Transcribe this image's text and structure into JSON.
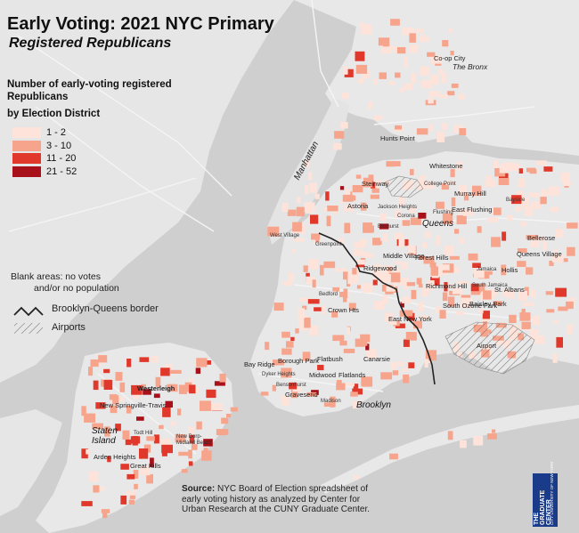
{
  "title": "Early Voting: 2021 NYC Primary",
  "subtitle": "Registered Republicans",
  "legend": {
    "title": "Number of early-voting registered Republicans",
    "subtitle": "by Election District",
    "items": [
      {
        "label": "1 - 2",
        "color": "#fde3da"
      },
      {
        "label": "3 - 10",
        "color": "#f7a48c"
      },
      {
        "label": "11 - 20",
        "color": "#e0382b"
      },
      {
        "label": "21 - 52",
        "color": "#a8101a"
      }
    ]
  },
  "notes": {
    "blank_line1": "Blank areas: no votes",
    "blank_line2": "and/or no population",
    "border_label": "Brooklyn-Queens border",
    "airports_label": "Airports"
  },
  "source": {
    "label": "Source:",
    "text": "NYC Board of Election spreadsheet of early voting history as analyzed by Center for Urban Research at the CUNY Graduate Center."
  },
  "logo": {
    "line1": "THE",
    "line2": "GRADUATE",
    "line3": "CENTER",
    "sub": "CITY UNIVERSITY OF NEW YORK"
  },
  "colors": {
    "water": "#cfcfcf",
    "land": "#e8e8e8",
    "border": "#222222",
    "low": "#fde3da",
    "mid": "#f7a48c",
    "high": "#e0382b",
    "top": "#a8101a"
  },
  "map_labels": {
    "bronx": "The Bronx",
    "manhattan": "Manhattan",
    "queens": "Queens",
    "brooklyn": "Brooklyn",
    "staten_island": "Staten Island",
    "airport": "Airport",
    "co_op_city": "Co-op City",
    "whitestone": "Whitestone",
    "college_point": "College Point",
    "murray_hill": "Murray Hill",
    "east_flushing": "East Flushing",
    "flushing": "Flushing",
    "bayside": "Bayside",
    "bellerose": "Bellerose",
    "queens_village": "Queens Village",
    "hollis": "Hollis",
    "jamaica": "Jamaica",
    "st_albans": "St. Albans",
    "south_jamaica": "South Jamaica",
    "baisley_park": "Baisley Park",
    "south_ozone_park": "South Ozone Park",
    "richmond_hill": "Richmond Hill",
    "forest_hills": "Forest Hills",
    "middle_village": "Middle Village",
    "ridgewood": "Ridgewood",
    "astoria": "Astoria",
    "steinway": "Steinway",
    "jackson_heights": "Jackson Heights",
    "elmhurst": "Elmhurst",
    "corona": "Corona",
    "hunts_point": "Hunts Point",
    "crown_hts": "Crown Hts",
    "east_new_york": "East New York",
    "canarsie": "Canarsie",
    "flatbush": "Flatbush",
    "borough_park": "Borough Park",
    "bay_ridge": "Bay Ridge",
    "gravesend": "Gravesend",
    "midwood": "Midwood",
    "flatlands": "Flatlands",
    "madison": "Madison",
    "bensonhurst": "Bensonhurst",
    "greenpoint": "Greenpoint",
    "bedford": "Bedford",
    "dyker_heights": "Dyker Heights",
    "west_village": "West Village",
    "westerleigh": "Westerleigh",
    "new_springville": "New Springville-Travis",
    "arden_heights": "Arden Heights",
    "great_kills": "Great Kills",
    "new_dorp": "New Dorp-Midland Beach",
    "todt_hill": "Todt Hill"
  }
}
